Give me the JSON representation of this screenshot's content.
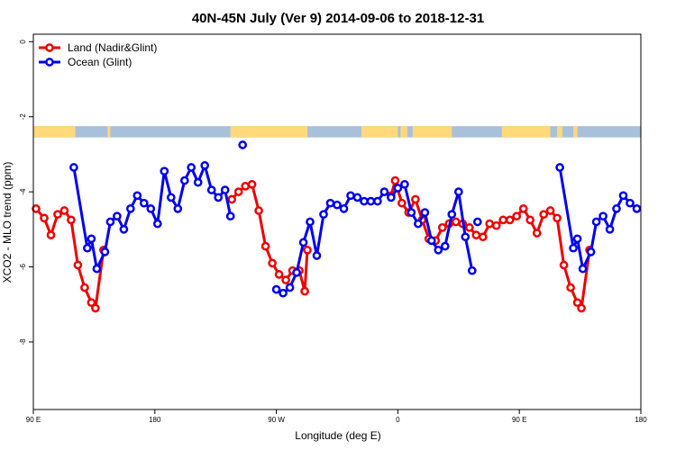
{
  "chart_data": {
    "type": "line",
    "title": "40N-45N July (Ver 9)   2014-09-06 to 2018-12-31",
    "xlabel": "Longitude (deg E)",
    "ylabel": "XCO2 - MLO trend (ppm)",
    "xlim": [
      90,
      540
    ],
    "ylim": [
      -9.8,
      0.2
    ],
    "x_ticks": [
      {
        "value": 90,
        "label": "90 E"
      },
      {
        "value": 180,
        "label": "180"
      },
      {
        "value": 270,
        "label": "90 W"
      },
      {
        "value": 360,
        "label": "0"
      },
      {
        "value": 450,
        "label": "90 E"
      },
      {
        "value": 540,
        "label": "180"
      }
    ],
    "y_ticks": [
      {
        "value": 0,
        "label": "0"
      },
      {
        "value": -2,
        "label": "-2"
      },
      {
        "value": -4,
        "label": "-4"
      },
      {
        "value": -6,
        "label": "-6"
      },
      {
        "value": -8,
        "label": "-8"
      }
    ],
    "grid": false,
    "legend_position": "top-left",
    "land_ocean_mask": {
      "y_range": [
        -2.25,
        -2.55
      ],
      "land_color": "#FFD97A",
      "ocean_color": "#A9C0DB",
      "land_segments": [
        [
          90,
          121
        ],
        [
          145,
          147
        ],
        [
          236,
          293
        ],
        [
          333,
          360
        ],
        [
          362,
          367
        ],
        [
          371,
          400
        ],
        [
          437,
          473
        ],
        [
          478,
          482
        ],
        [
          490,
          493
        ]
      ]
    },
    "series": [
      {
        "name": "Land (Nadir&Glint)",
        "color": "#EE0000",
        "segments": [
          [
            [
              92,
              -4.45
            ],
            [
              98,
              -4.7
            ],
            [
              103,
              -5.15
            ],
            [
              108,
              -4.6
            ],
            [
              113,
              -4.5
            ],
            [
              118,
              -4.75
            ],
            [
              123,
              -5.95
            ],
            [
              128,
              -6.55
            ],
            [
              133,
              -6.95
            ],
            [
              136,
              -7.1
            ],
            [
              142,
              -5.55
            ]
          ],
          [
            [
              237,
              -4.2
            ],
            [
              242,
              -4.0
            ],
            [
              247,
              -3.85
            ],
            [
              252,
              -3.8
            ],
            [
              257,
              -4.5
            ],
            [
              262,
              -5.45
            ],
            [
              267,
              -5.9
            ],
            [
              272,
              -6.2
            ],
            [
              277,
              -6.35
            ],
            [
              282,
              -6.1
            ],
            [
              287,
              -6.1
            ],
            [
              291,
              -6.65
            ],
            [
              293,
              -5.55
            ]
          ],
          [
            [
              355,
              -4.1
            ],
            [
              358,
              -3.7
            ],
            [
              363,
              -4.3
            ],
            [
              368,
              -4.55
            ],
            [
              373,
              -4.2
            ],
            [
              378,
              -4.75
            ],
            [
              383,
              -5.25
            ],
            [
              388,
              -5.3
            ],
            [
              393,
              -4.95
            ],
            [
              398,
              -4.85
            ],
            [
              403,
              -4.8
            ],
            [
              408,
              -4.85
            ],
            [
              413,
              -4.95
            ],
            [
              418,
              -5.15
            ],
            [
              423,
              -5.2
            ],
            [
              428,
              -4.85
            ],
            [
              433,
              -4.9
            ],
            [
              438,
              -4.75
            ],
            [
              443,
              -4.75
            ],
            [
              448,
              -4.65
            ],
            [
              453,
              -4.45
            ],
            [
              458,
              -4.75
            ],
            [
              463,
              -5.1
            ],
            [
              468,
              -4.6
            ],
            [
              473,
              -4.5
            ],
            [
              478,
              -4.7
            ],
            [
              483,
              -5.95
            ],
            [
              488,
              -6.55
            ],
            [
              493,
              -6.95
            ],
            [
              496,
              -7.1
            ],
            [
              502,
              -5.55
            ]
          ]
        ]
      },
      {
        "name": "Ocean (Glint)",
        "color": "#0000EE",
        "segments": [
          [
            [
              120,
              -3.35
            ],
            [
              130,
              -5.5
            ],
            [
              133,
              -5.25
            ],
            [
              137,
              -6.05
            ],
            [
              143,
              -5.6
            ],
            [
              147,
              -4.8
            ],
            [
              152,
              -4.65
            ],
            [
              157,
              -5.0
            ],
            [
              162,
              -4.45
            ],
            [
              167,
              -4.1
            ],
            [
              172,
              -4.3
            ],
            [
              177,
              -4.45
            ],
            [
              182,
              -4.85
            ],
            [
              187,
              -3.45
            ],
            [
              192,
              -4.15
            ],
            [
              197,
              -4.45
            ],
            [
              202,
              -3.7
            ],
            [
              207,
              -3.35
            ],
            [
              212,
              -3.75
            ],
            [
              217,
              -3.3
            ],
            [
              222,
              -3.95
            ],
            [
              227,
              -4.15
            ],
            [
              232,
              -3.95
            ],
            [
              236,
              -4.65
            ]
          ],
          [
            [
              270,
              -6.6
            ],
            [
              275,
              -6.7
            ],
            [
              280,
              -6.55
            ],
            [
              285,
              -6.15
            ],
            [
              290,
              -5.35
            ],
            [
              295,
              -4.8
            ],
            [
              300,
              -5.7
            ],
            [
              305,
              -4.6
            ],
            [
              310,
              -4.3
            ],
            [
              315,
              -4.35
            ],
            [
              320,
              -4.45
            ],
            [
              325,
              -4.1
            ],
            [
              330,
              -4.15
            ],
            [
              335,
              -4.25
            ],
            [
              340,
              -4.25
            ],
            [
              345,
              -4.25
            ],
            [
              350,
              -4.0
            ],
            [
              355,
              -4.15
            ],
            [
              360,
              -3.9
            ],
            [
              365,
              -3.8
            ],
            [
              370,
              -4.55
            ],
            [
              375,
              -4.85
            ],
            [
              380,
              -4.55
            ],
            [
              385,
              -5.3
            ],
            [
              390,
              -5.55
            ],
            [
              395,
              -5.45
            ],
            [
              400,
              -4.6
            ],
            [
              405,
              -4.0
            ],
            [
              410,
              -5.2
            ],
            [
              415,
              -6.1
            ]
          ],
          [
            [
              419,
              -4.8
            ]
          ],
          [
            [
              480,
              -3.35
            ],
            [
              490,
              -5.5
            ],
            [
              493,
              -5.25
            ],
            [
              497,
              -6.05
            ],
            [
              503,
              -5.6
            ],
            [
              507,
              -4.8
            ],
            [
              512,
              -4.65
            ],
            [
              517,
              -5.0
            ],
            [
              522,
              -4.45
            ],
            [
              527,
              -4.1
            ],
            [
              532,
              -4.3
            ],
            [
              537,
              -4.45
            ]
          ]
        ],
        "outliers": [
          [
            245,
            -2.75
          ]
        ]
      }
    ]
  }
}
